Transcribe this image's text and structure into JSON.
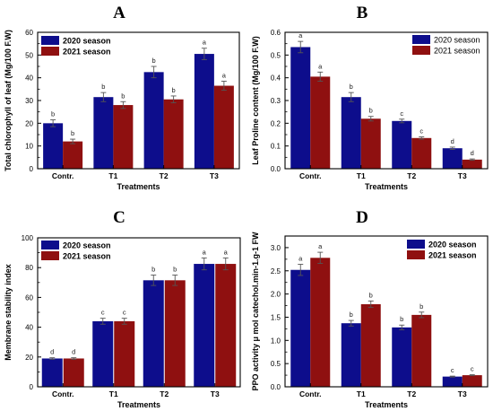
{
  "colors": {
    "s2020": "#0d0d8c",
    "s2021": "#8f1010",
    "axis": "#000000",
    "error": "#555555"
  },
  "chart_data": [
    {
      "letter": "A",
      "type": "bar",
      "categories": [
        "Contr.",
        "T1",
        "T2",
        "T3"
      ],
      "xlabel": "Treatments",
      "ylabel": "Total chlorophyll of leaf (Mg/100 F.W)",
      "ylim": [
        0,
        60
      ],
      "yticks": [
        "0",
        "10",
        "20",
        "30",
        "40",
        "50",
        "60"
      ],
      "grid": false,
      "legend_position": "top-left",
      "legend_bold": true,
      "series": [
        {
          "name": "2020 season",
          "color": "#0d0d8c",
          "values": [
            20,
            31.5,
            42.5,
            50.5
          ],
          "errors": [
            1.5,
            2,
            2.5,
            2.5
          ],
          "letters": [
            "b",
            "b",
            "b",
            "a"
          ]
        },
        {
          "name": "2021 season",
          "color": "#8f1010",
          "values": [
            12,
            28,
            30.5,
            36.5
          ],
          "errors": [
            1,
            1.5,
            1.5,
            2
          ],
          "letters": [
            "b",
            "b",
            "b",
            "a"
          ]
        }
      ]
    },
    {
      "letter": "B",
      "type": "bar",
      "categories": [
        "Contr.",
        "T1",
        "T2",
        "T3"
      ],
      "xlabel": "Treatments",
      "ylabel": "Leaf Proline content (Mg/100 F.W)",
      "ylim": [
        0,
        0.6
      ],
      "yticks": [
        "0.0",
        "0.1",
        "0.2",
        "0.3",
        "0.4",
        "0.5",
        "0.6"
      ],
      "grid": false,
      "legend_position": "top-right",
      "legend_bold": false,
      "series": [
        {
          "name": "2020 season",
          "color": "#0d0d8c",
          "values": [
            0.535,
            0.315,
            0.21,
            0.09
          ],
          "errors": [
            0.025,
            0.02,
            0.008,
            0.005
          ],
          "letters": [
            "a",
            "b",
            "c",
            "d"
          ]
        },
        {
          "name": "2021 season",
          "color": "#8f1010",
          "values": [
            0.405,
            0.22,
            0.135,
            0.04
          ],
          "errors": [
            0.02,
            0.01,
            0.005,
            0.003
          ],
          "letters": [
            "a",
            "b",
            "c",
            "d"
          ]
        }
      ]
    },
    {
      "letter": "C",
      "type": "bar",
      "categories": [
        "Contr.",
        "T1",
        "T2",
        "T3"
      ],
      "xlabel": "Treatments",
      "ylabel": "Membrane stability index",
      "ylim": [
        0,
        100
      ],
      "yticks": [
        "0",
        "20",
        "40",
        "60",
        "80",
        "100"
      ],
      "grid": false,
      "legend_position": "top-left",
      "legend_bold": true,
      "series": [
        {
          "name": "2020 season",
          "color": "#0d0d8c",
          "values": [
            19,
            44,
            71.5,
            82.5
          ],
          "errors": [
            0.5,
            2,
            3.5,
            4
          ],
          "letters": [
            "d",
            "c",
            "b",
            "a"
          ]
        },
        {
          "name": "2021 season",
          "color": "#8f1010",
          "values": [
            19,
            44,
            71.5,
            82.5
          ],
          "errors": [
            0.5,
            2,
            3.5,
            4
          ],
          "letters": [
            "d",
            "c",
            "b",
            "a"
          ]
        }
      ]
    },
    {
      "letter": "D",
      "type": "bar",
      "categories": [
        "Contr.",
        "T1",
        "T2",
        "T3"
      ],
      "xlabel": "Treatments",
      "ylabel": "PPO activity μ mol catechol.min-1.g-1 FW",
      "ylim": [
        0,
        3.25
      ],
      "yticks": [
        "0.0",
        "0.5",
        "1.0",
        "1.5",
        "2.0",
        "2.5",
        "3.0"
      ],
      "grid": false,
      "legend_position": "top-right",
      "legend_bold": true,
      "series": [
        {
          "name": "2020 season",
          "color": "#0d0d8c",
          "values": [
            2.52,
            1.37,
            1.28,
            0.22
          ],
          "errors": [
            0.12,
            0.06,
            0.05,
            0.01
          ],
          "letters": [
            "a",
            "b",
            "b",
            "c"
          ]
        },
        {
          "name": "2021 season",
          "color": "#8f1010",
          "values": [
            2.78,
            1.78,
            1.55,
            0.25
          ],
          "errors": [
            0.12,
            0.07,
            0.06,
            0.01
          ],
          "letters": [
            "a",
            "b",
            "b",
            "c"
          ]
        }
      ]
    }
  ]
}
